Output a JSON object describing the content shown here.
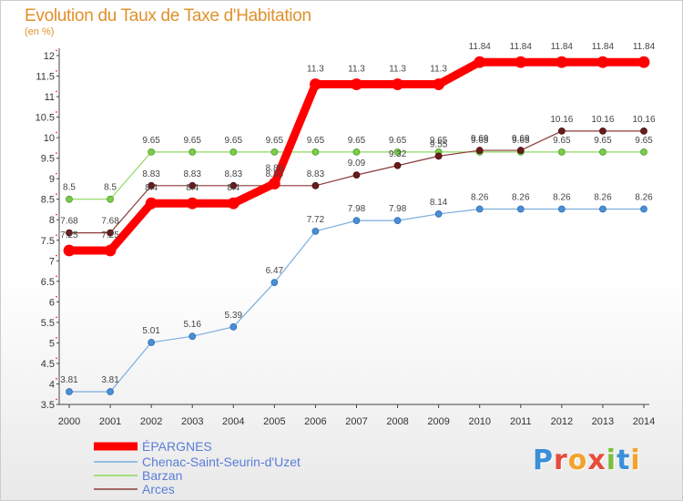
{
  "header": {
    "title": "Evolution du Taux de Taxe d'Habitation",
    "subtitle": "(en %)"
  },
  "logo": {
    "text": "Proxiti",
    "letter_colors": [
      "#3a8fd8",
      "#e64b3c",
      "#f2a32b",
      "#e64b3c",
      "#7bbf3a",
      "#3a8fd8",
      "#f2a32b"
    ]
  },
  "chart_data": {
    "type": "line",
    "title": "Evolution du Taux de Taxe d'Habitation",
    "ylabel": "(en %)",
    "x": [
      2000,
      2001,
      2002,
      2003,
      2004,
      2005,
      2006,
      2007,
      2008,
      2009,
      2010,
      2011,
      2012,
      2013,
      2014
    ],
    "ylim": [
      3.5,
      12
    ],
    "yticks": [
      3.5,
      4,
      4.5,
      5,
      5.5,
      6,
      6.5,
      7,
      7.5,
      8,
      8.5,
      9,
      9.5,
      10,
      10.5,
      11,
      11.5,
      12
    ],
    "grid": false,
    "legend_position": "bottom-left",
    "series": [
      {
        "name": "ÉPARGNES",
        "color": "#ff0000",
        "values": [
          7.25,
          7.25,
          8.4,
          8.4,
          8.4,
          8.88,
          11.3,
          11.3,
          11.3,
          11.3,
          11.84,
          11.84,
          11.84,
          11.84,
          11.84
        ],
        "labels": [
          "7.25",
          "7.25",
          "8.4",
          "8.4",
          "8.4",
          "8.88",
          "11.3",
          "11.3",
          "11.3",
          "11.3",
          "11.84",
          "11.84",
          "11.84",
          "11.84",
          "11.84"
        ]
      },
      {
        "name": "Chenac-Saint-Seurin-d'Uzet",
        "color": "#7aaee0",
        "values": [
          3.81,
          3.81,
          5.01,
          5.16,
          5.39,
          6.47,
          7.72,
          7.98,
          7.98,
          8.14,
          8.26,
          8.26,
          8.26,
          8.26,
          8.26
        ],
        "labels": [
          "3.81",
          "3.81",
          "5.01",
          "5.16",
          "5.39",
          "6.47",
          "7.72",
          "7.98",
          "7.98",
          "8.14",
          "8.26",
          "8.26",
          "8.26",
          "8.26",
          "8.26"
        ]
      },
      {
        "name": "Barzan",
        "color": "#8fd860",
        "values": [
          8.5,
          8.5,
          9.65,
          9.65,
          9.65,
          9.65,
          9.65,
          9.65,
          9.65,
          9.65,
          9.65,
          9.65,
          9.65,
          9.65,
          9.65
        ],
        "labels": [
          "8.5",
          "8.5",
          "9.65",
          "9.65",
          "9.65",
          "9.65",
          "9.65",
          "9.65",
          "9.65",
          "9.65",
          "9.65",
          "9.65",
          "9.65",
          "9.65",
          "9.65"
        ]
      },
      {
        "name": "Arces",
        "color": "#8b3a3a",
        "values": [
          7.68,
          7.68,
          8.83,
          8.83,
          8.83,
          8.83,
          8.83,
          9.09,
          9.32,
          9.55,
          9.69,
          9.69,
          10.16,
          10.16,
          10.16
        ],
        "labels": [
          "7.68",
          "7.68",
          "8.83",
          "8.83",
          "8.83",
          "8.83",
          "8.83",
          "9.09",
          "9.32",
          "9.55",
          "9.69",
          "9.69",
          "10.16",
          "10.16",
          "10.16"
        ]
      }
    ]
  }
}
